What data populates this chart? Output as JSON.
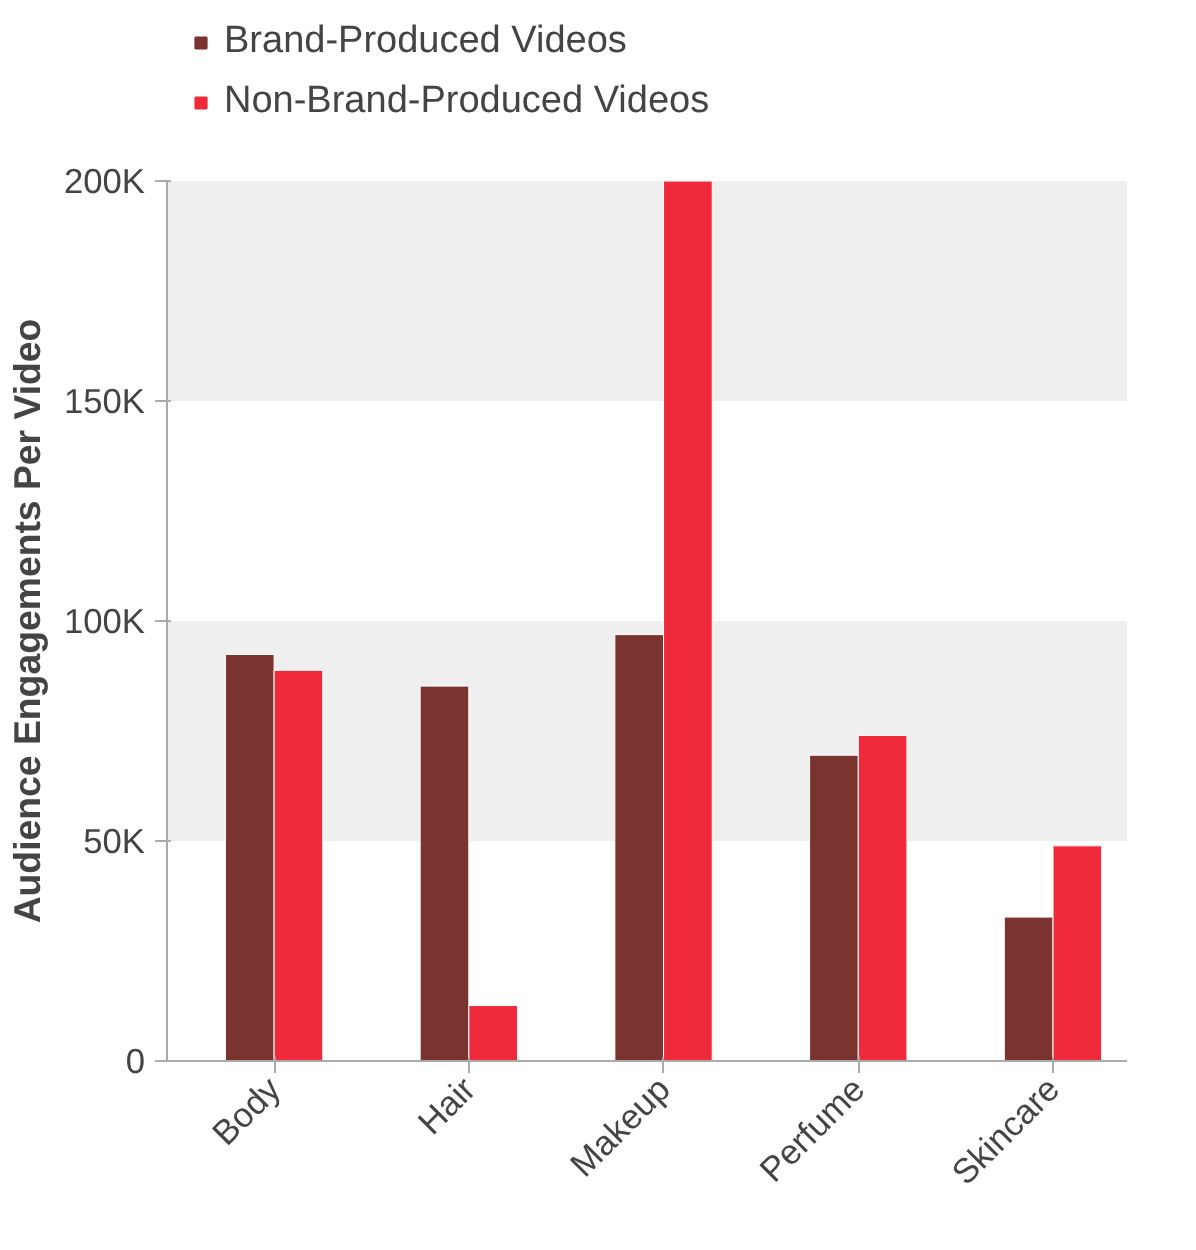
{
  "chart_data": {
    "type": "bar",
    "categories": [
      "Body",
      "Hair",
      "Makeup",
      "Perfume",
      "Skincare"
    ],
    "series": [
      {
        "name": "Brand-Produced Videos",
        "color": "#7b3330",
        "values": [
          92400,
          85200,
          96900,
          69500,
          32700
        ]
      },
      {
        "name": "Non-Brand-Produced Videos",
        "color": "#ee2a3b",
        "values": [
          88800,
          12600,
          200000,
          74000,
          48900
        ]
      }
    ],
    "ylabel": "Audience Engagements Per Video",
    "ylim": [
      0,
      200000
    ],
    "yticks": [
      0,
      {
        "value": 50000,
        "label": "50K"
      },
      {
        "value": 100000,
        "label": "100K"
      },
      {
        "value": 150000,
        "label": "150K"
      },
      {
        "value": 200000,
        "label": "200K"
      }
    ],
    "bands": [
      {
        "axis": "y",
        "from": 50000,
        "to": 100000,
        "color": "#efefef"
      },
      {
        "axis": "y",
        "from": 150000,
        "to": 200000,
        "color": "#efefef"
      }
    ],
    "legend": "top"
  }
}
